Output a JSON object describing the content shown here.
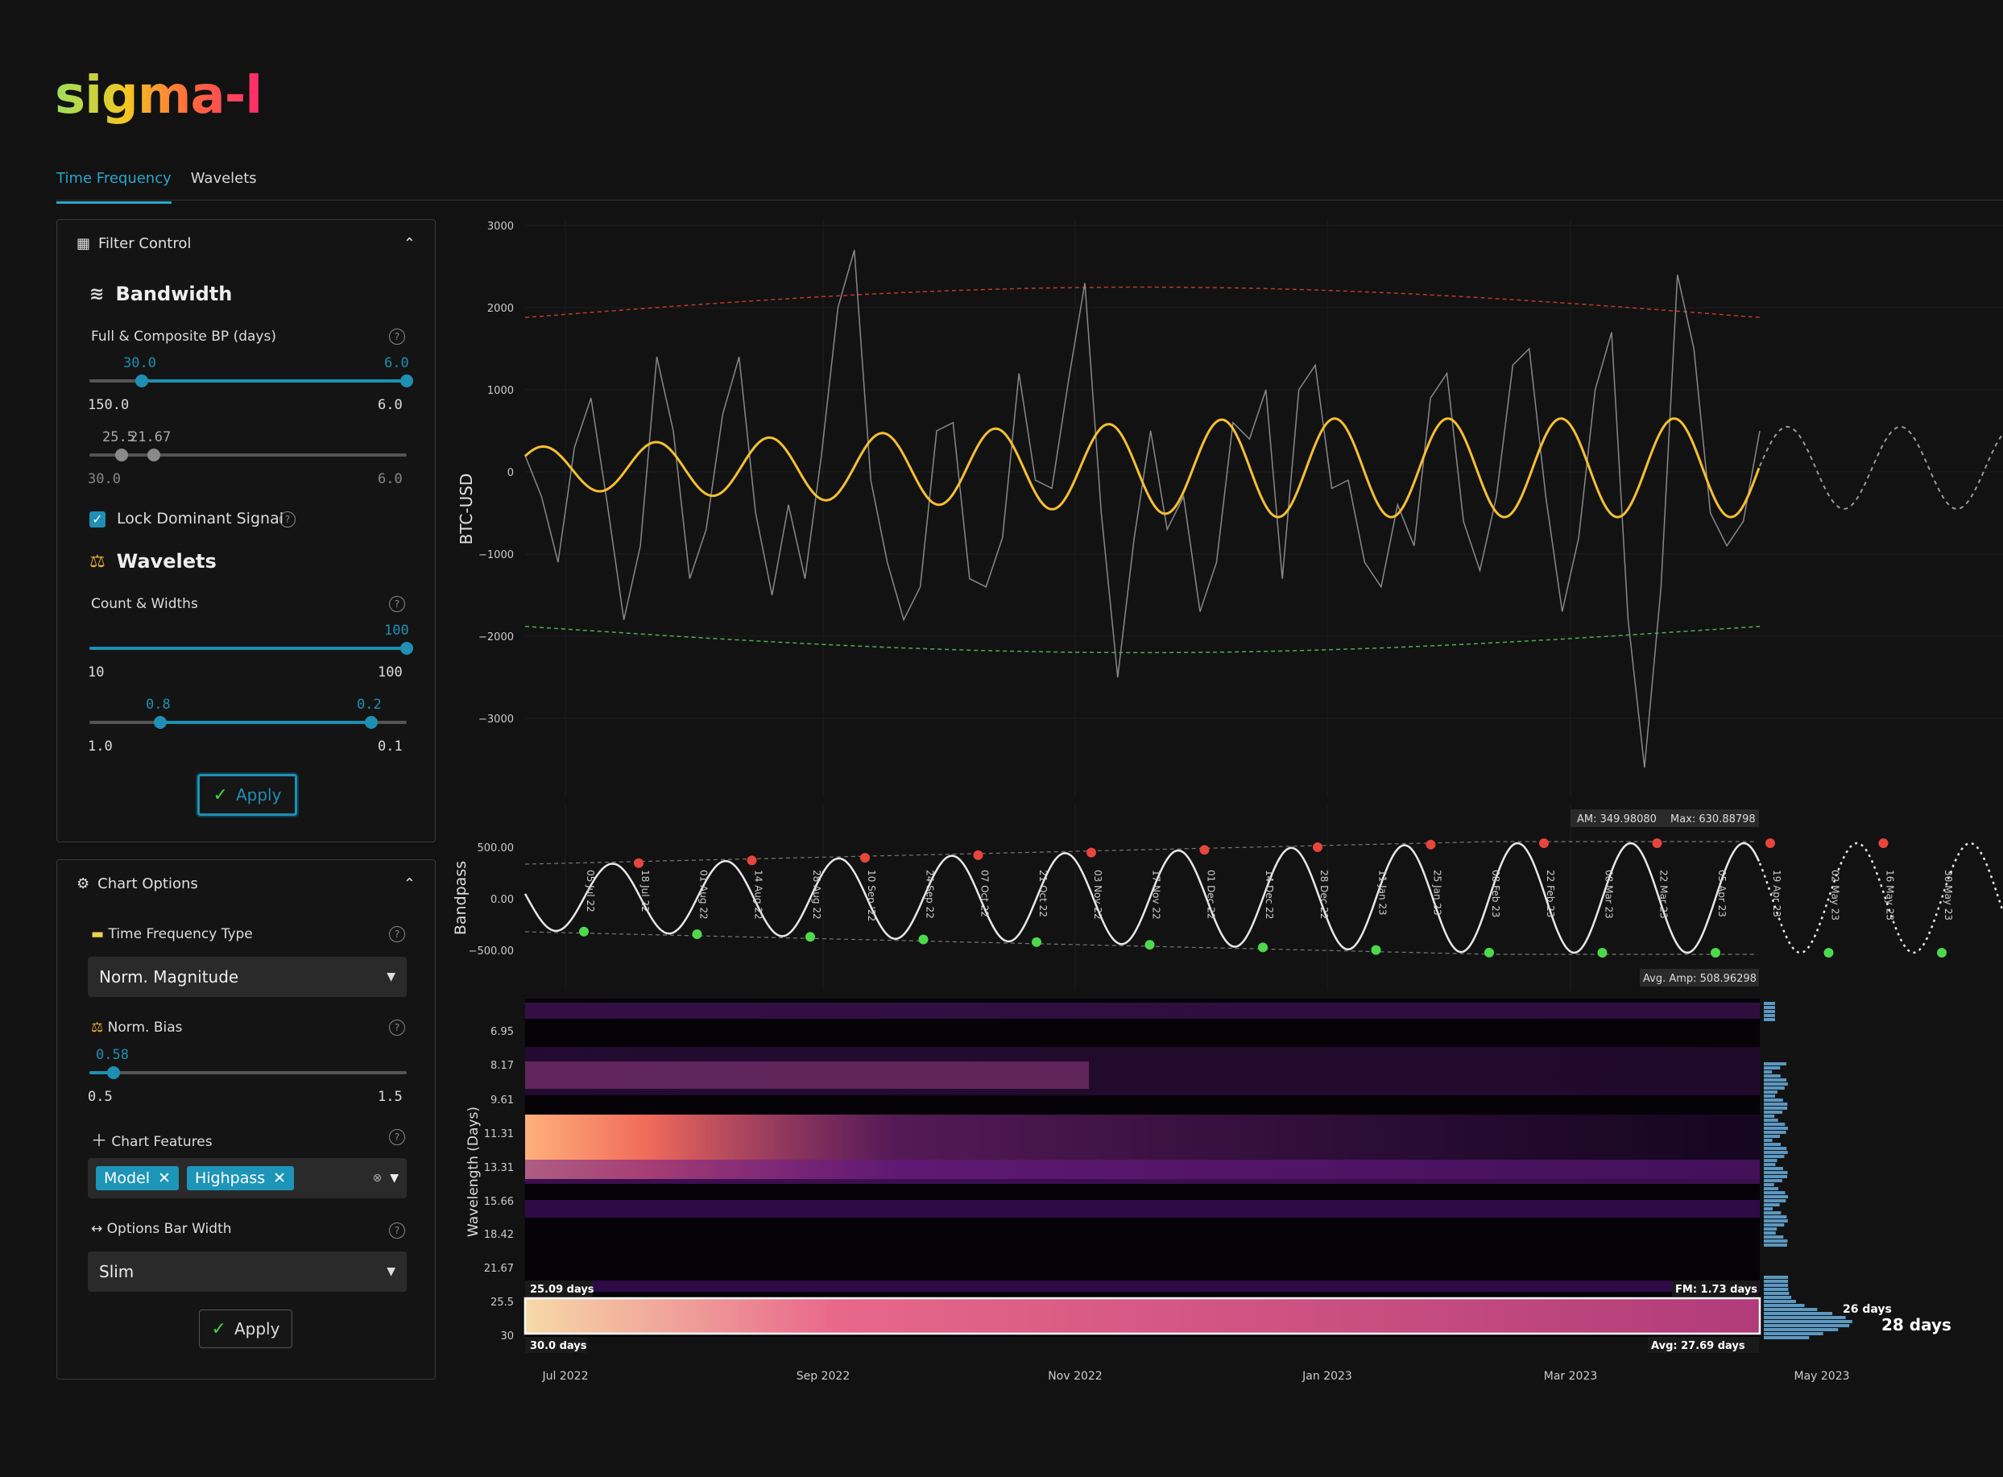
{
  "app": {
    "logo": "sigma-l"
  },
  "tabs": [
    {
      "label": "Time Frequency"
    },
    {
      "label": "Wavelets"
    }
  ],
  "filter_control": {
    "title": "Filter Control",
    "bandwidth": {
      "title": "Bandwidth",
      "label": "Full & Composite BP (days)",
      "slider1": {
        "low_value": "30.0",
        "high_value": "6.0",
        "min_label": "150.0",
        "max_label": "6.0"
      },
      "slider2": {
        "low_value": "25.5",
        "high_value": "21.67",
        "min_label": "30.0",
        "max_label": "6.0"
      }
    },
    "lock_label": "Lock Dominant Signal",
    "wavelets": {
      "title": "Wavelets",
      "label": "Count & Widths",
      "slider1": {
        "value": "100",
        "min_label": "10",
        "max_label": "100"
      },
      "slider2": {
        "low_value": "0.8",
        "high_value": "0.2",
        "min_label": "1.0",
        "max_label": "0.1"
      }
    },
    "apply_label": "Apply"
  },
  "chart_options": {
    "title": "Chart Options",
    "tf_type_label": "Time Frequency Type",
    "tf_type_value": "Norm. Magnitude",
    "norm_bias_label": "Norm. Bias",
    "norm_bias": {
      "value": "0.58",
      "min_label": "0.5",
      "max_label": "1.5"
    },
    "features_label": "Chart Features",
    "features": [
      "Model",
      "Highpass"
    ],
    "bar_width_label": "Options Bar Width",
    "bar_width_value": "Slim",
    "apply_label": "Apply"
  },
  "chart_data": [
    {
      "type": "line",
      "ylabel": "BTC-USD",
      "yticks": [
        "3000",
        "2000",
        "1000",
        "0",
        "−1000",
        "−2000",
        "−3000"
      ],
      "ylim": [
        -3000,
        3000
      ],
      "upper_envelope": [
        1880,
        2250
      ],
      "lower_envelope": [
        -1880,
        -2200
      ],
      "series": [
        {
          "values": [
            200,
            -300,
            -1100,
            300,
            900,
            -400,
            -1800,
            -900,
            1400,
            500,
            -1300,
            -700,
            700,
            1400,
            -500,
            -1500,
            -400,
            -1300,
            200,
            2000,
            2700,
            -100,
            -1100,
            -1800,
            -1400,
            500,
            600,
            -1300,
            -1400,
            -800,
            1200,
            -100,
            -200,
            1100,
            2300,
            -500,
            -2500,
            -800,
            500,
            -700,
            -300,
            -1700,
            -1100,
            600,
            400,
            1000,
            -1300,
            1000,
            1300,
            -200,
            -100,
            -1100,
            -1400,
            -400,
            -900,
            900,
            1200,
            -600,
            -1200,
            -300,
            1300,
            1500,
            -300,
            -1700,
            -800,
            1000,
            1700,
            -1800,
            -3600,
            -1400,
            2400,
            1500,
            -500,
            -900,
            -600,
            500
          ]
        },
        {
          "name": "",
          "values": []
        }
      ]
    },
    {
      "type": "line",
      "ylabel": "Bandpass",
      "yticks": [
        "500.00",
        "0.00",
        "−500.00"
      ],
      "annotations": {
        "am": "AM: 349.98080",
        "max": "Max: 630.88798",
        "avg_amp": "Avg. Amp: 508.96298"
      },
      "peak_dates": [
        "18 Jul 22",
        "14 Aug 22",
        "10 Sep '22",
        "07 Oct 22",
        "03 Nov 22",
        "01 Dec 22",
        "28 Dec 22",
        "25 Jan 23",
        "22 Feb 23",
        "22 Mar 23",
        "19 Apr 23",
        "16 May 23",
        "13 Jun 23"
      ],
      "trough_dates": [
        "05 Jul 22",
        "01 Aug 22",
        "28 Aug 22",
        "24 Sep 22",
        "21 Oct 22",
        "17 Nov 22",
        "14 Dec 22",
        "11 Jan 23",
        "08 Feb 23",
        "08 Mar 23",
        "05 Apr 23",
        "02 May 23",
        "30 May 23"
      ]
    },
    {
      "type": "heatmap",
      "ylabel": "Wavelength (Days)",
      "yticks": [
        "6.95",
        "8.17",
        "9.61",
        "11.31",
        "13.31",
        "15.66",
        "18.42",
        "21.67",
        "25.5",
        "30"
      ],
      "xticks": [
        "Jul 2022",
        "Sep 2022",
        "Nov 2022",
        "Jan 2023",
        "Mar 2023",
        "May 2023"
      ],
      "annotations": {
        "top_left": "25.09 days",
        "bottom_left": "30.0 days",
        "fm": "FM: 1.73 days",
        "avg": "Avg: 27.69 days"
      },
      "histogram_labels": {
        "secondary": "26 days",
        "primary": "28 days"
      }
    }
  ]
}
